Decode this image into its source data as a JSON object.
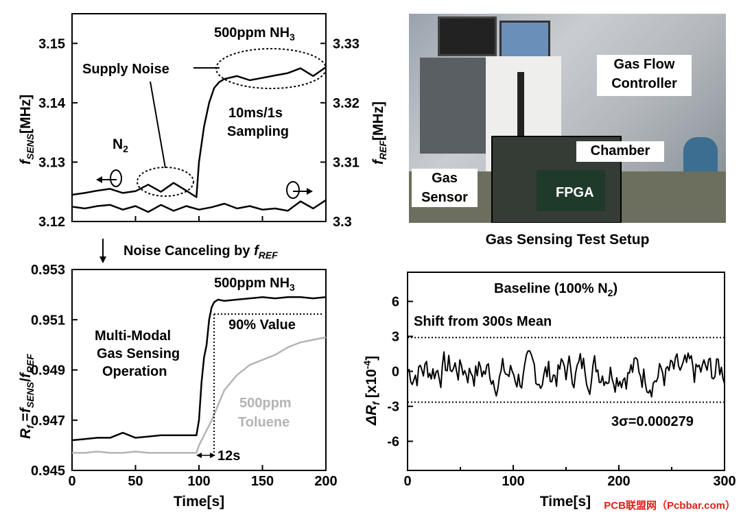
{
  "chart_data": [
    {
      "type": "line",
      "panel": "top-left",
      "ylabel_left": "fSENS[MHz]",
      "ylabel_right": "fREF[MHz]",
      "ylim_left": [
        3.12,
        3.155
      ],
      "ylim_right": [
        3.3,
        3.335
      ],
      "yticks_left": [
        "3.15",
        "3.14",
        "3.13",
        "3.12"
      ],
      "yticks_right": [
        "3.33",
        "3.32",
        "3.31",
        "3.3"
      ],
      "xlim": [
        0,
        200
      ],
      "annotations": {
        "ammonia": "500ppm NH3",
        "supply_noise": "Supply Noise",
        "sampling": "10ms/1s Sampling",
        "n2": "N2"
      },
      "series": [
        {
          "name": "fSENS",
          "axis": "left",
          "x": [
            0,
            10,
            20,
            30,
            40,
            50,
            60,
            70,
            80,
            90,
            98,
            100,
            104,
            108,
            112,
            116,
            120,
            130,
            140,
            150,
            160,
            170,
            180,
            190,
            200
          ],
          "y": [
            3.1245,
            3.1248,
            3.1252,
            3.1255,
            3.1248,
            3.1251,
            3.1262,
            3.125,
            3.1265,
            3.1252,
            3.1241,
            3.13,
            3.136,
            3.14,
            3.1425,
            3.1435,
            3.144,
            3.1445,
            3.1438,
            3.1442,
            3.1446,
            3.145,
            3.1458,
            3.1445,
            3.146
          ]
        },
        {
          "name": "fREF",
          "axis": "right",
          "x": [
            0,
            10,
            20,
            30,
            40,
            50,
            60,
            70,
            80,
            90,
            100,
            110,
            120,
            130,
            140,
            150,
            160,
            170,
            180,
            190,
            200
          ],
          "y": [
            3.3025,
            3.3022,
            3.3026,
            3.3028,
            3.302,
            3.3026,
            3.3016,
            3.3028,
            3.3018,
            3.3026,
            3.302,
            3.3024,
            3.303,
            3.3022,
            3.3026,
            3.302,
            3.3022,
            3.3018,
            3.3034,
            3.3022,
            3.3036
          ]
        }
      ]
    },
    {
      "type": "line",
      "panel": "bottom-left",
      "xlabel": "Time[s]",
      "ylabel": "Rf =fSENS/fREF",
      "xlim": [
        0,
        200
      ],
      "ylim": [
        0.945,
        0.953
      ],
      "xticks": [
        "0",
        "50",
        "100",
        "150",
        "200"
      ],
      "yticks": [
        "0.953",
        "0.951",
        "0.949",
        "0.947",
        "0.945"
      ],
      "annotations": {
        "ammonia": "500ppm NH3",
        "ninety": "90% Value",
        "multi_modal": [
          "Multi-Modal",
          "Gas Sensing",
          "Operation"
        ],
        "toluene": [
          "500ppm",
          "Toluene"
        ],
        "delay": "12s"
      },
      "series": [
        {
          "name": "500ppm NH3",
          "color": "#000000",
          "x": [
            0,
            10,
            20,
            30,
            40,
            50,
            60,
            70,
            80,
            90,
            98,
            100,
            102,
            104,
            106,
            108,
            110,
            112,
            115,
            120,
            130,
            140,
            150,
            160,
            170,
            180,
            190,
            200
          ],
          "y": [
            0.9462,
            0.94625,
            0.9463,
            0.9463,
            0.9465,
            0.9463,
            0.94635,
            0.9464,
            0.9464,
            0.9464,
            0.9464,
            0.947,
            0.9485,
            0.9495,
            0.95,
            0.951,
            0.9515,
            0.9517,
            0.9518,
            0.95175,
            0.9518,
            0.95185,
            0.9519,
            0.95185,
            0.9519,
            0.9519,
            0.95185,
            0.9519
          ]
        },
        {
          "name": "500ppm Toluene",
          "color": "#b4b4b4",
          "x": [
            0,
            10,
            20,
            30,
            40,
            50,
            60,
            70,
            80,
            90,
            98,
            100,
            105,
            110,
            115,
            120,
            130,
            140,
            150,
            160,
            170,
            180,
            190,
            200
          ],
          "y": [
            0.9457,
            0.9457,
            0.94575,
            0.9457,
            0.9457,
            0.94575,
            0.9457,
            0.9457,
            0.9457,
            0.9457,
            0.9457,
            0.946,
            0.9465,
            0.947,
            0.9476,
            0.9482,
            0.9488,
            0.9492,
            0.9494,
            0.9496,
            0.9499,
            0.9501,
            0.9502,
            0.9503
          ]
        }
      ],
      "ninety_value": 0.9512
    },
    {
      "type": "line",
      "panel": "bottom-right",
      "title": "Baseline (100% N2)",
      "xlabel": "Time[s]",
      "ylabel": "ΔRf [x10-4]",
      "xlim": [
        0,
        300
      ],
      "ylim": [
        -8.5,
        8.5
      ],
      "xticks": [
        "0",
        "100",
        "200",
        "300"
      ],
      "yticks": [
        "6",
        "3",
        "0",
        "-3",
        "-6"
      ],
      "reference_lines": [
        2.9,
        -2.65
      ],
      "annotations": {
        "shift": "Shift from 300s Mean",
        "sigma": "3σ=0.000279"
      }
    }
  ],
  "photo": {
    "title": "Gas Sensing Test Setup",
    "labels": {
      "gas_flow": [
        "Gas Flow",
        "Controller"
      ],
      "chamber": "Chamber",
      "gas_sensor": [
        "Gas",
        "Sensor"
      ],
      "fpga": "FPGA"
    }
  },
  "section_label": "Noise Canceling by fREF",
  "watermark": "PCB联盟网（Pcbbar.com）",
  "colors": {
    "ammonia": "#000000",
    "toluene": "#b4b4b4"
  }
}
